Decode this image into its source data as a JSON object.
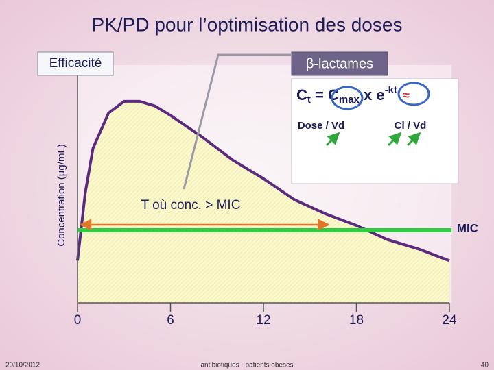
{
  "chart_data": {
    "type": "line",
    "title": "PK/PD pour l’optimisation des doses",
    "ylabel": "Concentration (µg/mL)",
    "x": [
      0,
      0.5,
      1,
      2,
      3,
      4,
      5,
      6,
      8,
      10,
      12,
      14,
      16,
      18,
      20,
      22,
      24
    ],
    "values": [
      18,
      47,
      66,
      81,
      86,
      86,
      84,
      80,
      71,
      61,
      53,
      44,
      38,
      33,
      27,
      23,
      18
    ],
    "color": "#5b2a7e",
    "xlim": [
      0,
      24
    ],
    "xticks": [
      0,
      6,
      12,
      18,
      24
    ],
    "ylim": [
      0,
      100
    ],
    "reference_line": {
      "label": "MIC",
      "value": 31,
      "color": "#2ecc40"
    },
    "annotation_range": {
      "label": "T où conc. > MIC",
      "x": [
        0.2,
        16.2
      ]
    },
    "callouts": {
      "efficacy": "Efficacité",
      "drug": "β-lactames"
    },
    "formula": {
      "c": "C",
      "t": "t",
      "eq": " = C",
      "max": "max",
      "xe": " x e",
      "exp": "-kt",
      "approx": "≈",
      "dose": "Dose / Vd",
      "cl": "Cl / Vd"
    }
  },
  "footer": {
    "date": "29/10/2012",
    "center": "antibiotiques - patients obèses",
    "page": "40"
  }
}
